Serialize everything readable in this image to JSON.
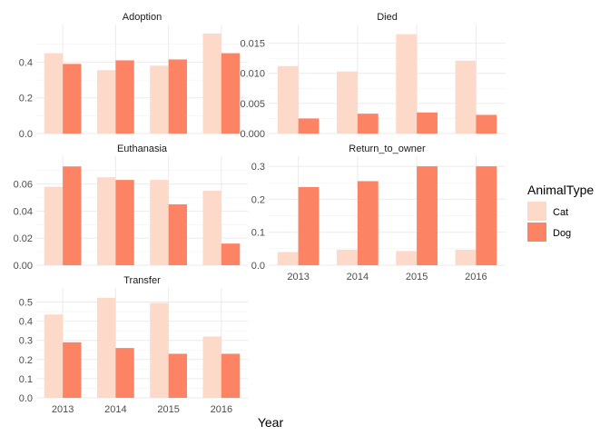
{
  "chart_data": {
    "type": "bar",
    "layout": "faceted",
    "xlabel": "Year",
    "categories": [
      "2013",
      "2014",
      "2015",
      "2016"
    ],
    "legend": {
      "title": "AnimalType",
      "position": "right",
      "entries": [
        {
          "name": "Cat",
          "color": "#FDD9C9"
        },
        {
          "name": "Dog",
          "color": "#FC8465"
        }
      ]
    },
    "facets": [
      {
        "title": "Adoption",
        "ylim": [
          0,
          0.58
        ],
        "yticks": [
          0.0,
          0.2,
          0.4
        ],
        "ytick_labels": [
          "0.0",
          "0.2",
          "0.4"
        ],
        "series": [
          {
            "name": "Cat",
            "values": [
              0.45,
              0.355,
              0.38,
              0.56
            ]
          },
          {
            "name": "Dog",
            "values": [
              0.39,
              0.41,
              0.415,
              0.45
            ]
          }
        ]
      },
      {
        "title": "Died",
        "ylim": [
          0,
          0.0172
        ],
        "yticks": [
          0.0,
          0.005,
          0.01,
          0.015
        ],
        "ytick_labels": [
          "0.000",
          "0.005",
          "0.010",
          "0.015"
        ],
        "series": [
          {
            "name": "Cat",
            "values": [
              0.0112,
              0.0103,
              0.0165,
              0.0121
            ]
          },
          {
            "name": "Dog",
            "values": [
              0.0025,
              0.0033,
              0.0035,
              0.0031
            ]
          }
        ]
      },
      {
        "title": "Euthanasia",
        "ylim": [
          0,
          0.0765
        ],
        "yticks": [
          0.0,
          0.02,
          0.04,
          0.06
        ],
        "ytick_labels": [
          "0.00",
          "0.02",
          "0.04",
          "0.06"
        ],
        "series": [
          {
            "name": "Cat",
            "values": [
              0.058,
              0.065,
              0.063,
              0.055
            ]
          },
          {
            "name": "Dog",
            "values": [
              0.073,
              0.063,
              0.045,
              0.016
            ]
          }
        ]
      },
      {
        "title": "Return_to_owner",
        "ylim": [
          0,
          0.314
        ],
        "yticks": [
          0.0,
          0.1,
          0.2,
          0.3
        ],
        "ytick_labels": [
          "0.0",
          "0.1",
          "0.2",
          "0.3"
        ],
        "series": [
          {
            "name": "Cat",
            "values": [
              0.04,
              0.047,
              0.043,
              0.047
            ]
          },
          {
            "name": "Dog",
            "values": [
              0.237,
              0.255,
              0.3,
              0.3
            ]
          }
        ]
      },
      {
        "title": "Transfer",
        "ylim": [
          0,
          0.545
        ],
        "yticks": [
          0.0,
          0.1,
          0.2,
          0.3,
          0.4,
          0.5
        ],
        "ytick_labels": [
          "0.0",
          "0.1",
          "0.2",
          "0.3",
          "0.4",
          "0.5"
        ],
        "series": [
          {
            "name": "Cat",
            "values": [
              0.435,
              0.522,
              0.495,
              0.32
            ]
          },
          {
            "name": "Dog",
            "values": [
              0.29,
              0.26,
              0.23,
              0.23
            ]
          }
        ]
      }
    ]
  }
}
